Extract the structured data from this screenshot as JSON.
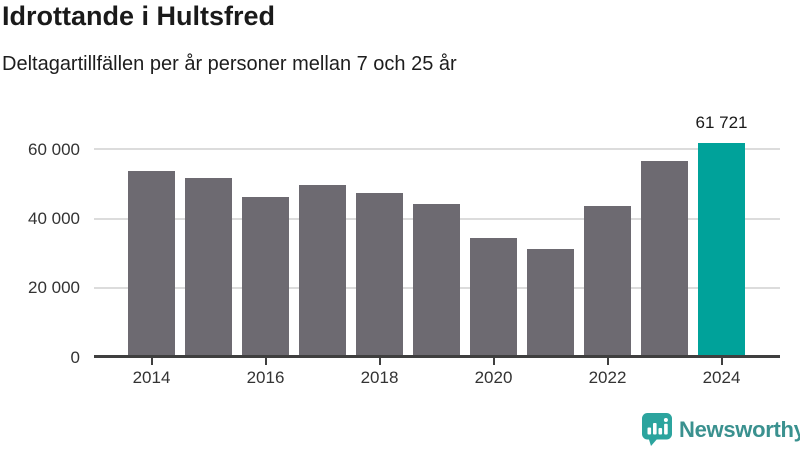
{
  "header": {
    "title": "Idrottande i Hultsfred",
    "subtitle": "Deltagartillfällen per år personer mellan 7 och 25 år"
  },
  "chart_data": {
    "type": "bar",
    "title": "Idrottande i Hultsfred",
    "subtitle": "Deltagartillfällen per år personer mellan 7 och 25 år",
    "categories": [
      "2014",
      "2015",
      "2016",
      "2017",
      "2018",
      "2019",
      "2020",
      "2021",
      "2022",
      "2023",
      "2024"
    ],
    "values": [
      53700,
      51600,
      46200,
      49800,
      47400,
      44200,
      34500,
      31300,
      43600,
      56500,
      61721
    ],
    "highlight_index": 10,
    "highlight_value_label": "61 721",
    "ylim": [
      0,
      62000
    ],
    "y_ticks": [
      {
        "value": 0,
        "label": "0"
      },
      {
        "value": 20000,
        "label": "20 000"
      },
      {
        "value": 40000,
        "label": "40 000"
      },
      {
        "value": 60000,
        "label": "60 000"
      }
    ],
    "x_ticks": [
      {
        "index": 0,
        "label": "2014"
      },
      {
        "index": 2,
        "label": "2016"
      },
      {
        "index": 4,
        "label": "2018"
      },
      {
        "index": 6,
        "label": "2020"
      },
      {
        "index": 8,
        "label": "2022"
      },
      {
        "index": 10,
        "label": "2024"
      }
    ],
    "grid": "horizontal",
    "legend": "none",
    "colors": {
      "bar": "#6d6a71",
      "highlight": "#00a29a",
      "gridline": "#dcdcdc",
      "axis_line": "#3f3f3f",
      "tick_label": "#333333",
      "value_label": "#1a1a1a"
    }
  },
  "footer": {
    "brand_name": "Newsworthy",
    "brand_text_color": "#3a918f",
    "brand_icon_color": "#2ca49e",
    "brand_icon": "bar-chart-speech-bubble-icon"
  }
}
